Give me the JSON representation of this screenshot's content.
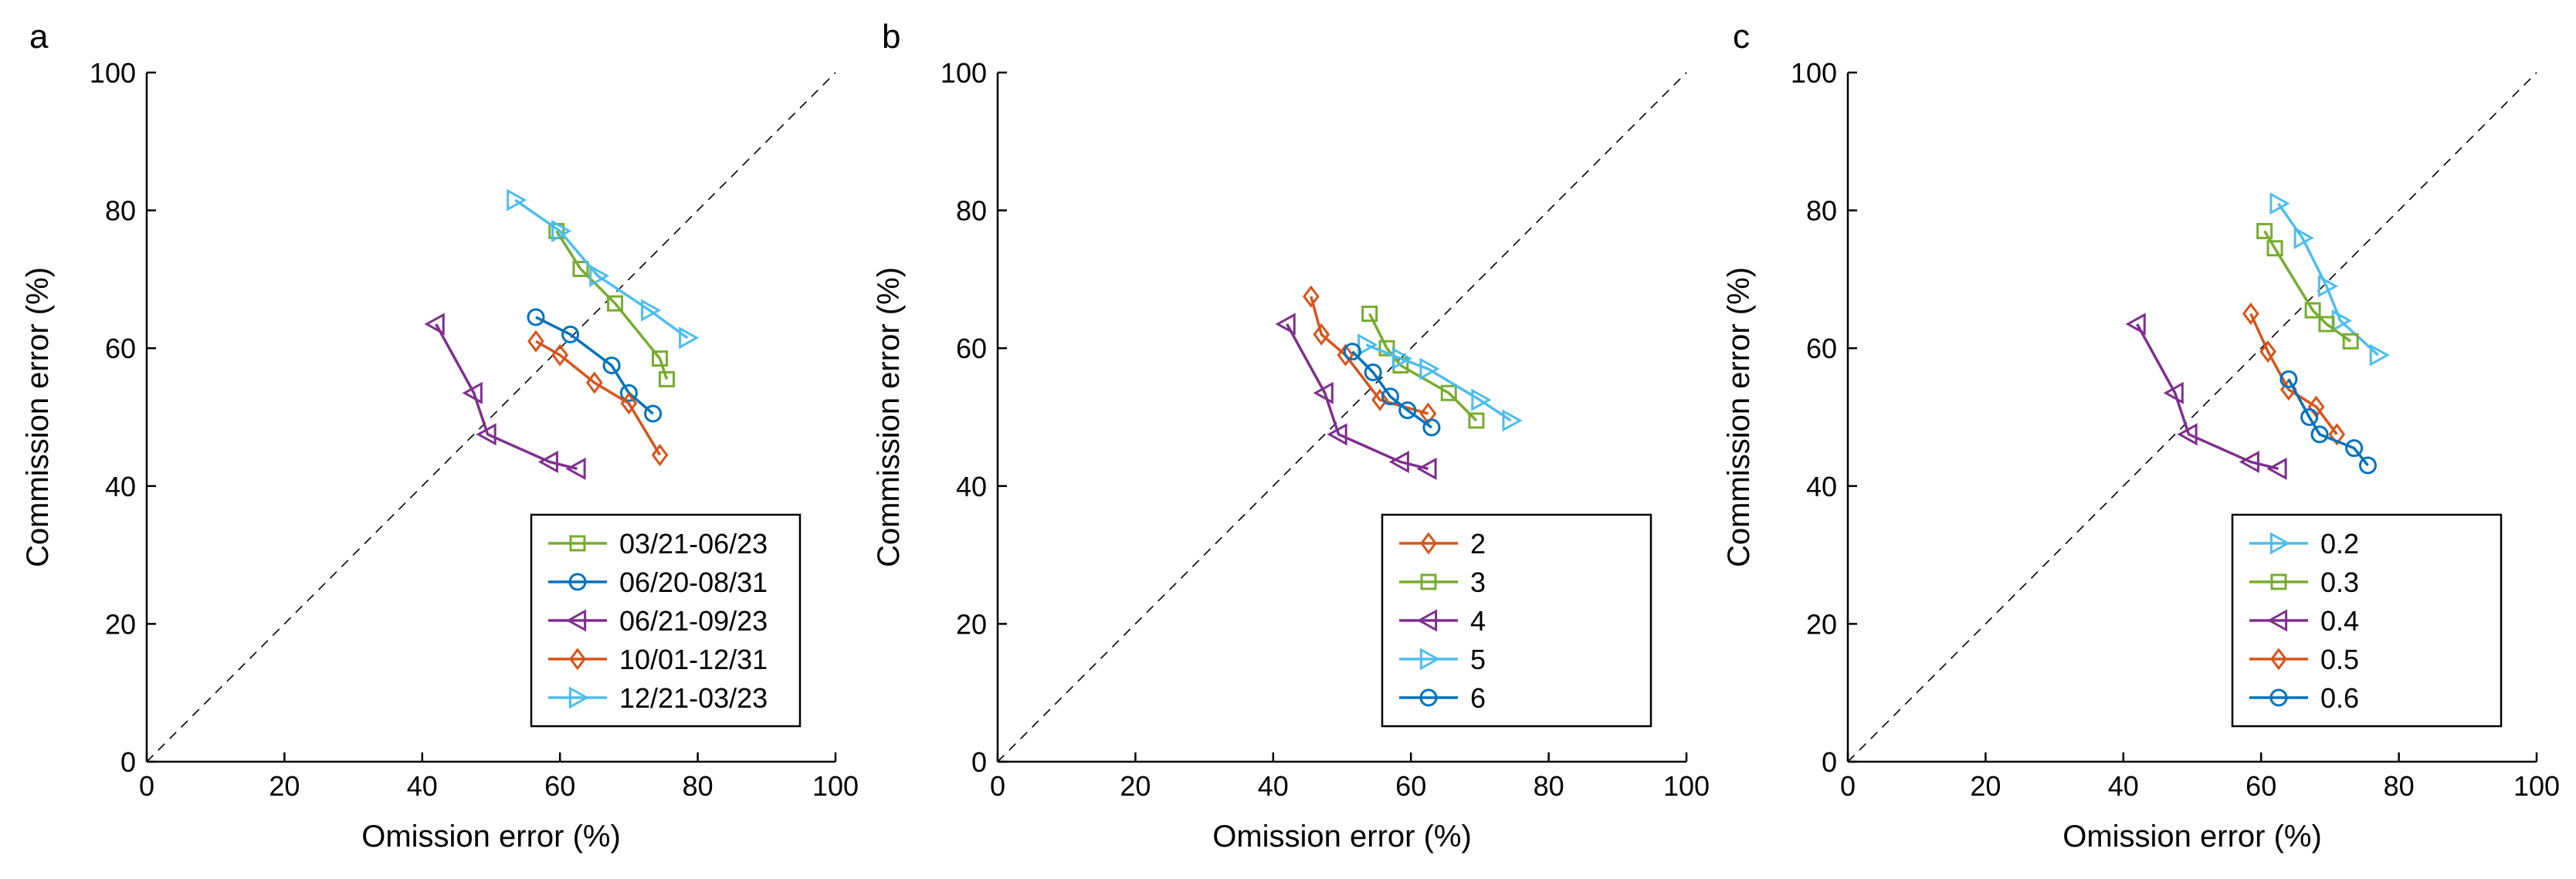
{
  "chart_data": [
    {
      "type": "line",
      "panel": "a",
      "xlabel": "Omission error (%)",
      "ylabel": "Commission error (%)",
      "xlim": [
        0,
        100
      ],
      "ylim": [
        0,
        100
      ],
      "xticks": [
        0,
        20,
        40,
        60,
        80,
        100
      ],
      "yticks": [
        0,
        20,
        40,
        60,
        80,
        100
      ],
      "diagonal": true,
      "legend_position": "bottom-right",
      "series": [
        {
          "name": "03/21-06/23",
          "color": "#77AC30",
          "marker": "square",
          "x": [
            59.5,
            63,
            68,
            74.5,
            75.5
          ],
          "y": [
            77,
            71.5,
            66.5,
            58.5,
            55.5
          ]
        },
        {
          "name": "06/20-08/31",
          "color": "#0072BD",
          "marker": "circle",
          "x": [
            56.5,
            61.5,
            67.5,
            70,
            73.5
          ],
          "y": [
            64.5,
            62,
            57.5,
            53.5,
            50.5
          ]
        },
        {
          "name": "06/21-09/23",
          "color": "#7E2F8E",
          "marker": "triangle-left",
          "x": [
            42,
            47.5,
            49.5,
            58.5,
            62.5
          ],
          "y": [
            63.5,
            53.5,
            47.5,
            43.5,
            42.5
          ]
        },
        {
          "name": "10/01-12/31",
          "color": "#D95319",
          "marker": "diamond",
          "x": [
            56.5,
            60,
            65,
            70,
            74.5
          ],
          "y": [
            61,
            59,
            55,
            52,
            44.5
          ]
        },
        {
          "name": "12/21-03/23",
          "color": "#4DBEEE",
          "marker": "triangle-right",
          "x": [
            53.5,
            60,
            65.5,
            73,
            78.5
          ],
          "y": [
            81.5,
            77,
            70.5,
            65.5,
            61.5
          ]
        }
      ]
    },
    {
      "type": "line",
      "panel": "b",
      "xlabel": "Omission error (%)",
      "ylabel": "Commission error (%)",
      "xlim": [
        0,
        100
      ],
      "ylim": [
        0,
        100
      ],
      "xticks": [
        0,
        20,
        40,
        60,
        80,
        100
      ],
      "yticks": [
        0,
        20,
        40,
        60,
        80,
        100
      ],
      "diagonal": true,
      "legend_position": "bottom-right",
      "series": [
        {
          "name": "2",
          "color": "#D95319",
          "marker": "diamond",
          "x": [
            45.5,
            47,
            50.5,
            55.5,
            62.5
          ],
          "y": [
            67.5,
            62,
            59,
            52.5,
            50.5
          ]
        },
        {
          "name": "3",
          "color": "#77AC30",
          "marker": "square",
          "x": [
            54,
            56.5,
            58.5,
            65.5,
            69.5
          ],
          "y": [
            65,
            60,
            57.5,
            53.5,
            49.5
          ]
        },
        {
          "name": "4",
          "color": "#7E2F8E",
          "marker": "triangle-left",
          "x": [
            42,
            47.5,
            49.5,
            58.5,
            62.5
          ],
          "y": [
            63.5,
            53.5,
            47.5,
            43.5,
            42.5
          ]
        },
        {
          "name": "5",
          "color": "#4DBEEE",
          "marker": "triangle-right",
          "x": [
            53.5,
            58.5,
            62.5,
            70,
            74.5
          ],
          "y": [
            60.5,
            58.5,
            57,
            52.5,
            49.5
          ]
        },
        {
          "name": "6",
          "color": "#0072BD",
          "marker": "circle",
          "x": [
            51.5,
            54.5,
            57,
            59.5,
            63
          ],
          "y": [
            59.5,
            56.5,
            53,
            51,
            48.5
          ]
        }
      ]
    },
    {
      "type": "line",
      "panel": "c",
      "xlabel": "Omission error (%)",
      "ylabel": "Commission error (%)",
      "xlim": [
        0,
        100
      ],
      "ylim": [
        0,
        100
      ],
      "xticks": [
        0,
        20,
        40,
        60,
        80,
        100
      ],
      "yticks": [
        0,
        20,
        40,
        60,
        80,
        100
      ],
      "diagonal": true,
      "legend_position": "bottom-right",
      "series": [
        {
          "name": "0.2",
          "color": "#4DBEEE",
          "marker": "triangle-right",
          "x": [
            62.5,
            66,
            69.5,
            71.5,
            77
          ],
          "y": [
            81,
            76,
            69,
            64,
            59
          ]
        },
        {
          "name": "0.3",
          "color": "#77AC30",
          "marker": "square",
          "x": [
            60.5,
            62,
            67.5,
            69.5,
            73
          ],
          "y": [
            77,
            74.5,
            65.5,
            63.5,
            61
          ]
        },
        {
          "name": "0.4",
          "color": "#7E2F8E",
          "marker": "triangle-left",
          "x": [
            42,
            47.5,
            49.5,
            58.5,
            62.5
          ],
          "y": [
            63.5,
            53.5,
            47.5,
            43.5,
            42.5
          ]
        },
        {
          "name": "0.5",
          "color": "#D95319",
          "marker": "diamond",
          "x": [
            58.5,
            61,
            64,
            68,
            71
          ],
          "y": [
            65,
            59.5,
            54,
            51.5,
            47.5
          ]
        },
        {
          "name": "0.6",
          "color": "#0072BD",
          "marker": "circle",
          "x": [
            64,
            67,
            68.5,
            73.5,
            75.5
          ],
          "y": [
            55.5,
            50,
            47.5,
            45.5,
            43
          ]
        }
      ]
    }
  ]
}
